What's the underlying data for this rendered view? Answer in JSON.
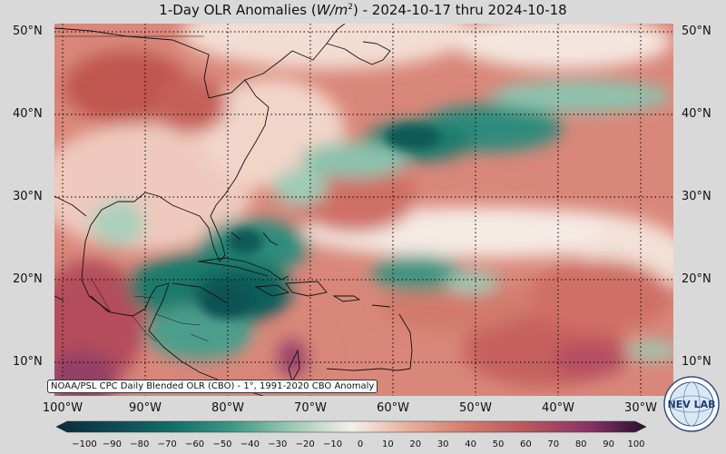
{
  "title_prefix": "1-Day OLR Anomalies (",
  "title_unit": "W/m",
  "title_sup": "2",
  "title_suffix": ") - 2024-10-17 thru 2024-10-18",
  "lat_labels": [
    "50°N",
    "40°N",
    "30°N",
    "20°N",
    "10°N"
  ],
  "lon_labels": [
    "100°W",
    "90°W",
    "80°W",
    "70°W",
    "60°W",
    "50°W",
    "40°W",
    "30°W"
  ],
  "caption": "NOAA/PSL CPC Daily Blended OLR (CBO) - 1°, 1991-2020 CBO Anomaly",
  "colorbar_ticks": [
    "−100",
    "−90",
    "−80",
    "−70",
    "−60",
    "−50",
    "−40",
    "−30",
    "−20",
    "−10",
    "0",
    "10",
    "20",
    "30",
    "40",
    "50",
    "60",
    "70",
    "80",
    "90",
    "100"
  ],
  "logo_text": "NEV LAB",
  "colors": {
    "positive": "#c9655a",
    "negative": "#137466",
    "neutral": "#f5efea"
  }
}
